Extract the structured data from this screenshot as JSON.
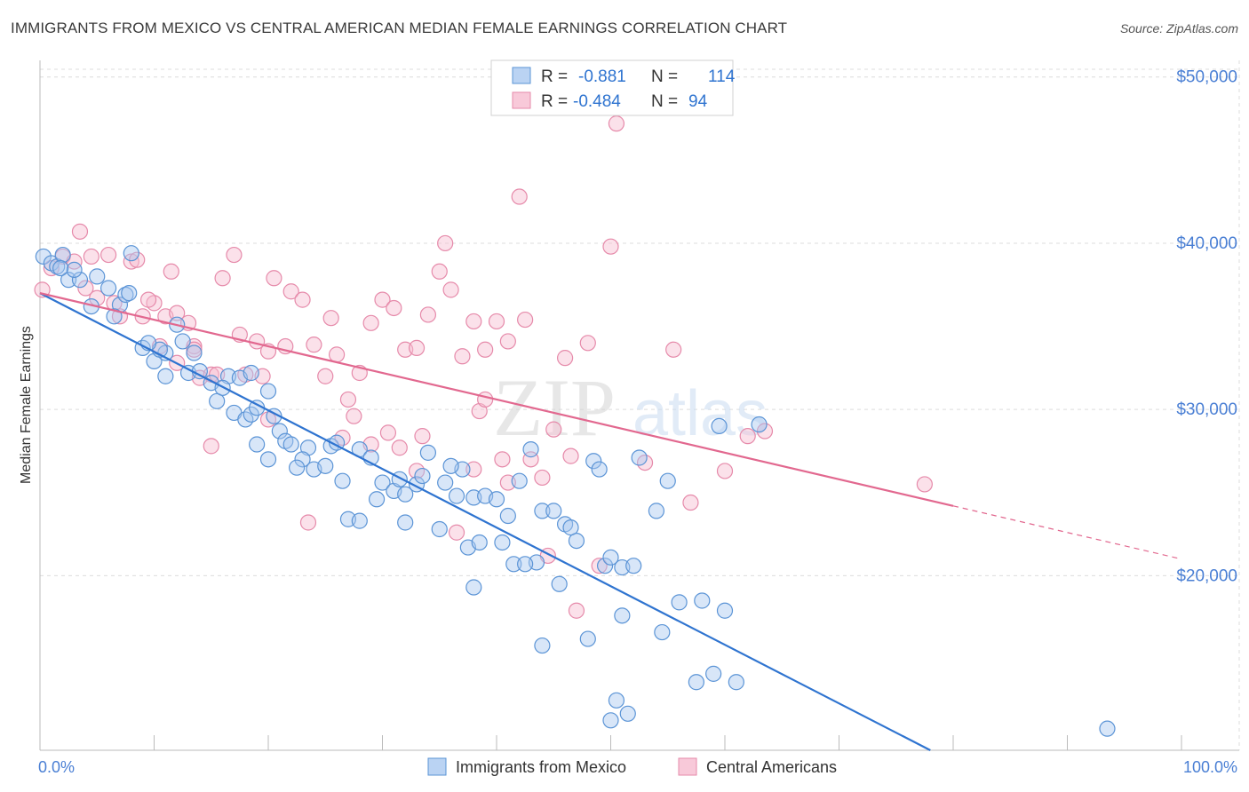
{
  "header": {
    "title": "IMMIGRANTS FROM MEXICO VS CENTRAL AMERICAN MEDIAN FEMALE EARNINGS CORRELATION CHART",
    "source": "Source: ZipAtlas.com"
  },
  "watermark": {
    "zip": "ZIP",
    "atlas": "atlas"
  },
  "legend_top": {
    "rows": [
      {
        "r_label": "R =",
        "r_value": "-0.881",
        "n_label": "N =",
        "n_value": "114"
      },
      {
        "r_label": "R =",
        "r_value": "-0.484",
        "n_label": "N =",
        "n_value": "94"
      }
    ]
  },
  "colors": {
    "blue_fill": "#a9c8f0",
    "blue_stroke": "#5b94d6",
    "blue_line": "#2f74d0",
    "pink_fill": "#f6bcd0",
    "pink_stroke": "#e68aaa",
    "pink_line": "#e2688f",
    "axis_text": "#4a7fd4",
    "grid": "#dcdcdc"
  },
  "chart_data": {
    "type": "scatter",
    "title": "IMMIGRANTS FROM MEXICO VS CENTRAL AMERICAN MEDIAN FEMALE EARNINGS CORRELATION CHART",
    "xlabel": "",
    "ylabel": "Median Female Earnings",
    "x_tick_labels": [
      "0.0%",
      "100.0%"
    ],
    "y_tick_labels": [
      "$20,000",
      "$30,000",
      "$40,000",
      "$50,000"
    ],
    "y_ticks": [
      20000,
      30000,
      40000,
      50000
    ],
    "xlim": [
      0,
      100
    ],
    "ylim": [
      9500,
      51000
    ],
    "grid": true,
    "legend_position": "bottom-center",
    "series": [
      {
        "name": "Immigrants from Mexico",
        "r": -0.881,
        "n": 114,
        "trend": {
          "x": [
            0,
            78
          ],
          "y": [
            37000,
            9500
          ]
        },
        "points": [
          [
            0.3,
            39200
          ],
          [
            1.0,
            38800
          ],
          [
            1.5,
            38600
          ],
          [
            2.0,
            39300
          ],
          [
            2.5,
            37800
          ],
          [
            3.5,
            37800
          ],
          [
            5.0,
            38000
          ],
          [
            6.0,
            37300
          ],
          [
            8.0,
            39400
          ],
          [
            7.0,
            36300
          ],
          [
            4.5,
            36200
          ],
          [
            6.5,
            35600
          ],
          [
            7.5,
            36900
          ],
          [
            9.0,
            33700
          ],
          [
            10.0,
            32900
          ],
          [
            11.0,
            33400
          ],
          [
            12.0,
            35100
          ],
          [
            13.5,
            33400
          ],
          [
            11.0,
            32000
          ],
          [
            13.0,
            32200
          ],
          [
            14.0,
            32300
          ],
          [
            15.0,
            31600
          ],
          [
            15.5,
            30500
          ],
          [
            16.5,
            32000
          ],
          [
            17.5,
            31900
          ],
          [
            18.5,
            32200
          ],
          [
            16.0,
            31300
          ],
          [
            17.0,
            29800
          ],
          [
            18.0,
            29400
          ],
          [
            18.5,
            29700
          ],
          [
            19.0,
            30100
          ],
          [
            20.5,
            29600
          ],
          [
            21.0,
            28700
          ],
          [
            21.5,
            28100
          ],
          [
            20.0,
            27000
          ],
          [
            22.0,
            27900
          ],
          [
            23.5,
            27700
          ],
          [
            23.0,
            27000
          ],
          [
            24.0,
            26400
          ],
          [
            25.0,
            26600
          ],
          [
            25.5,
            27800
          ],
          [
            26.5,
            25700
          ],
          [
            27.0,
            23400
          ],
          [
            28.0,
            27600
          ],
          [
            29.0,
            27100
          ],
          [
            30.0,
            25600
          ],
          [
            31.0,
            25100
          ],
          [
            32.0,
            24900
          ],
          [
            33.0,
            25500
          ],
          [
            33.5,
            26000
          ],
          [
            34.0,
            27400
          ],
          [
            35.5,
            25600
          ],
          [
            36.5,
            24800
          ],
          [
            37.0,
            26400
          ],
          [
            38.0,
            24700
          ],
          [
            39.0,
            24800
          ],
          [
            37.5,
            21700
          ],
          [
            38.5,
            22000
          ],
          [
            40.0,
            24600
          ],
          [
            41.0,
            23600
          ],
          [
            42.0,
            25700
          ],
          [
            43.0,
            27600
          ],
          [
            44.0,
            23900
          ],
          [
            41.5,
            20700
          ],
          [
            43.5,
            20800
          ],
          [
            45.0,
            23900
          ],
          [
            46.0,
            23100
          ],
          [
            47.0,
            22100
          ],
          [
            48.5,
            26900
          ],
          [
            49.0,
            26400
          ],
          [
            49.5,
            20600
          ],
          [
            50.0,
            21100
          ],
          [
            51.0,
            20500
          ],
          [
            52.0,
            20600
          ],
          [
            52.5,
            27100
          ],
          [
            54.0,
            23900
          ],
          [
            55.0,
            25700
          ],
          [
            54.5,
            16600
          ],
          [
            56.0,
            18400
          ],
          [
            57.5,
            13600
          ],
          [
            58.0,
            18500
          ],
          [
            59.0,
            14100
          ],
          [
            59.5,
            29000
          ],
          [
            61.0,
            13600
          ],
          [
            63.0,
            29100
          ],
          [
            60.0,
            17900
          ],
          [
            48.0,
            16200
          ],
          [
            44.0,
            15800
          ],
          [
            45.5,
            19500
          ],
          [
            51.0,
            17600
          ],
          [
            50.5,
            12500
          ],
          [
            50.0,
            11300
          ],
          [
            51.5,
            11700
          ],
          [
            38.0,
            19300
          ],
          [
            42.5,
            20700
          ],
          [
            32.0,
            23200
          ],
          [
            35.0,
            22800
          ],
          [
            28.0,
            23300
          ],
          [
            26.0,
            28000
          ],
          [
            20.0,
            31100
          ],
          [
            19.0,
            27900
          ],
          [
            12.5,
            34100
          ],
          [
            10.5,
            33600
          ],
          [
            9.5,
            34000
          ],
          [
            7.8,
            37000
          ],
          [
            3.0,
            38400
          ],
          [
            1.8,
            38500
          ],
          [
            93.5,
            10800
          ],
          [
            22.5,
            26500
          ],
          [
            31.5,
            25800
          ],
          [
            36.0,
            26600
          ],
          [
            46.5,
            22900
          ],
          [
            40.5,
            22000
          ],
          [
            29.5,
            24600
          ]
        ]
      },
      {
        "name": "Central Americans",
        "r": -0.484,
        "n": 94,
        "trend": {
          "x": [
            0,
            80
          ],
          "y": [
            37000,
            24200
          ]
        },
        "trend_dashed": {
          "x": [
            80,
            100
          ],
          "y": [
            24200,
            21000
          ]
        },
        "points": [
          [
            0.2,
            37200
          ],
          [
            1.0,
            38500
          ],
          [
            2.0,
            39200
          ],
          [
            3.0,
            38900
          ],
          [
            4.0,
            37300
          ],
          [
            5.0,
            36700
          ],
          [
            6.5,
            36400
          ],
          [
            7.0,
            35600
          ],
          [
            8.0,
            38900
          ],
          [
            6.0,
            39300
          ],
          [
            4.5,
            39200
          ],
          [
            3.5,
            40700
          ],
          [
            9.0,
            35600
          ],
          [
            10.0,
            36400
          ],
          [
            10.5,
            33800
          ],
          [
            11.0,
            35600
          ],
          [
            11.5,
            38300
          ],
          [
            12.0,
            32800
          ],
          [
            13.0,
            35200
          ],
          [
            13.5,
            33800
          ],
          [
            14.0,
            31900
          ],
          [
            15.0,
            32100
          ],
          [
            15.5,
            32100
          ],
          [
            16.0,
            37900
          ],
          [
            17.0,
            39300
          ],
          [
            17.5,
            34500
          ],
          [
            18.0,
            32100
          ],
          [
            19.0,
            34100
          ],
          [
            19.5,
            32000
          ],
          [
            20.0,
            33500
          ],
          [
            20.5,
            37900
          ],
          [
            21.5,
            33800
          ],
          [
            22.0,
            37100
          ],
          [
            23.0,
            36600
          ],
          [
            24.0,
            33900
          ],
          [
            25.0,
            32000
          ],
          [
            25.5,
            35500
          ],
          [
            26.0,
            33300
          ],
          [
            27.0,
            30600
          ],
          [
            27.5,
            29600
          ],
          [
            28.0,
            32200
          ],
          [
            29.0,
            35200
          ],
          [
            30.0,
            36600
          ],
          [
            31.0,
            36100
          ],
          [
            32.0,
            33600
          ],
          [
            33.0,
            33700
          ],
          [
            34.0,
            35700
          ],
          [
            35.0,
            38300
          ],
          [
            35.5,
            40000
          ],
          [
            36.0,
            37200
          ],
          [
            37.0,
            33200
          ],
          [
            38.0,
            35300
          ],
          [
            38.5,
            29900
          ],
          [
            39.0,
            33600
          ],
          [
            40.0,
            35300
          ],
          [
            41.0,
            34100
          ],
          [
            42.0,
            42800
          ],
          [
            42.5,
            35400
          ],
          [
            43.0,
            27000
          ],
          [
            44.0,
            25900
          ],
          [
            45.0,
            28800
          ],
          [
            46.0,
            33100
          ],
          [
            47.0,
            17900
          ],
          [
            48.0,
            34000
          ],
          [
            49.0,
            20600
          ],
          [
            50.0,
            39800
          ],
          [
            50.5,
            47200
          ],
          [
            53.0,
            26800
          ],
          [
            55.5,
            33600
          ],
          [
            57.0,
            24400
          ],
          [
            60.0,
            26300
          ],
          [
            62.0,
            28400
          ],
          [
            63.5,
            28700
          ],
          [
            77.5,
            25500
          ],
          [
            30.5,
            28600
          ],
          [
            31.5,
            27700
          ],
          [
            26.5,
            28300
          ],
          [
            23.5,
            23200
          ],
          [
            20.0,
            29400
          ],
          [
            15.0,
            27800
          ],
          [
            13.5,
            33600
          ],
          [
            12.0,
            35800
          ],
          [
            9.5,
            36600
          ],
          [
            8.5,
            39000
          ],
          [
            44.5,
            21200
          ],
          [
            41.0,
            25600
          ],
          [
            38.0,
            26400
          ],
          [
            36.5,
            22600
          ],
          [
            33.5,
            28400
          ],
          [
            29.0,
            27900
          ],
          [
            33.0,
            26300
          ],
          [
            40.5,
            27000
          ],
          [
            46.5,
            27200
          ],
          [
            39.0,
            30600
          ]
        ]
      }
    ]
  }
}
